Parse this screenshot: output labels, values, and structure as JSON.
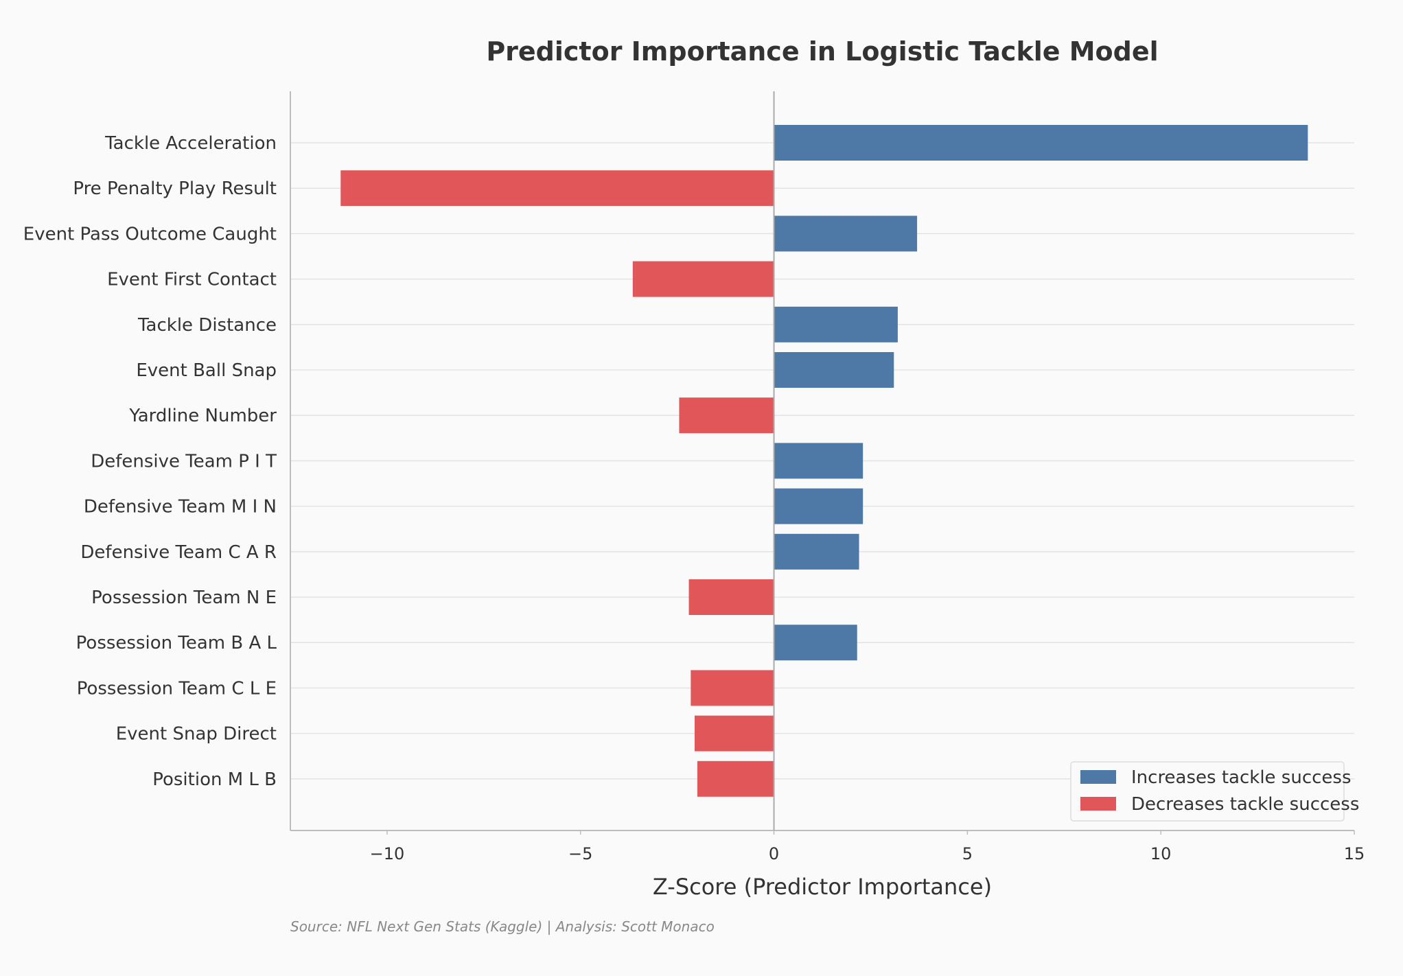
{
  "chart_data": {
    "type": "bar",
    "orientation": "horizontal",
    "title": "Predictor Importance in Logistic Tackle Model",
    "xlabel": "Z-Score (Predictor Importance)",
    "ylabel": "",
    "xlim": [
      -12.5,
      15
    ],
    "xticks": [
      -10,
      -5,
      0,
      5,
      10,
      15
    ],
    "xtick_labels": [
      "−10",
      "−5",
      "0",
      "5",
      "10",
      "15"
    ],
    "grid": "horizontal",
    "legend_position": "bottom-right",
    "categories": [
      "Tackle Acceleration",
      "Pre Penalty Play Result",
      "Event Pass Outcome Caught",
      "Event First Contact",
      "Tackle Distance",
      "Event Ball Snap",
      "Yardline Number",
      "Defensive Team  P I T",
      "Defensive Team  M I N",
      "Defensive Team  C A R",
      "Possession Team  N E",
      "Possession Team  B A L",
      "Possession Team  C L E",
      "Event Snap Direct",
      "Position  M L B"
    ],
    "values": [
      13.8,
      -11.2,
      3.7,
      -3.65,
      3.2,
      3.1,
      -2.45,
      2.3,
      2.3,
      2.2,
      -2.2,
      2.15,
      -2.15,
      -2.05,
      -1.98
    ],
    "legend": [
      {
        "label": "Increases tackle success",
        "color": "#4e79a7"
      },
      {
        "label": "Decreases tackle success",
        "color": "#e15759"
      }
    ],
    "colors": {
      "positive": "#4e79a7",
      "negative": "#e15759"
    }
  },
  "source": "Source: NFL Next Gen Stats (Kaggle) | Analysis: Scott Monaco"
}
